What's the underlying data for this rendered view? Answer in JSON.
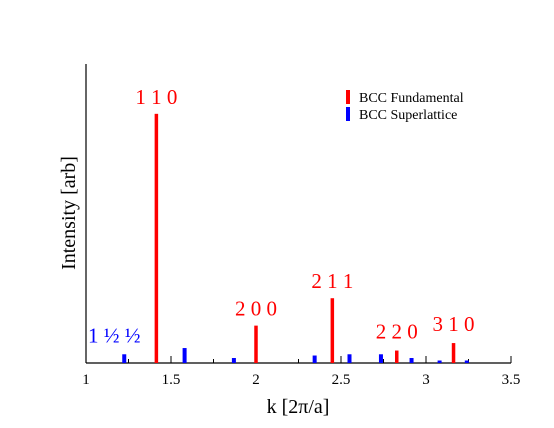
{
  "chart_data": {
    "type": "bar",
    "xlabel": "k  [2π/a]",
    "ylabel": "Intensity  [arb]",
    "xlim": [
      1,
      3.5
    ],
    "ylim": [
      0,
      1.2
    ],
    "xticks": [
      1,
      1.5,
      2,
      2.5,
      3,
      3.5
    ],
    "xtick_labels": [
      "1",
      "1.5",
      "2",
      "2.5",
      "3",
      "3.5"
    ],
    "grid": false,
    "legend_position": "top-right",
    "series": [
      {
        "name": "BCC Fundamental",
        "color": "#ff0000",
        "points": [
          {
            "x": 1.414,
            "y": 1.0
          },
          {
            "x": 2.0,
            "y": 0.15
          },
          {
            "x": 2.449,
            "y": 0.26
          },
          {
            "x": 2.828,
            "y": 0.05
          },
          {
            "x": 3.162,
            "y": 0.08
          }
        ]
      },
      {
        "name": "BCC Superlattice",
        "color": "#0000ff",
        "points": [
          {
            "x": 1.225,
            "y": 0.035
          },
          {
            "x": 1.58,
            "y": 0.06
          },
          {
            "x": 1.87,
            "y": 0.02
          },
          {
            "x": 2.345,
            "y": 0.03
          },
          {
            "x": 2.55,
            "y": 0.035
          },
          {
            "x": 2.735,
            "y": 0.035
          },
          {
            "x": 2.915,
            "y": 0.02
          },
          {
            "x": 3.08,
            "y": 0.01
          },
          {
            "x": 3.24,
            "y": 0.01
          }
        ]
      }
    ],
    "annotations": [
      {
        "text": "1 1 0",
        "x": 1.414,
        "y": 1.0,
        "color": "#ff0000"
      },
      {
        "text": "2 0 0",
        "x": 2.0,
        "y": 0.15,
        "color": "#ff0000"
      },
      {
        "text": "2 1 1",
        "x": 2.449,
        "y": 0.26,
        "color": "#ff0000"
      },
      {
        "text": "2 2 0",
        "x": 2.828,
        "y": 0.05,
        "color": "#ff0000"
      },
      {
        "text": "3 1 0",
        "x": 3.162,
        "y": 0.08,
        "color": "#ff0000"
      },
      {
        "text": "1 ½ ½",
        "x": 1.225,
        "y": 0.035,
        "color": "#0000ff"
      }
    ]
  }
}
